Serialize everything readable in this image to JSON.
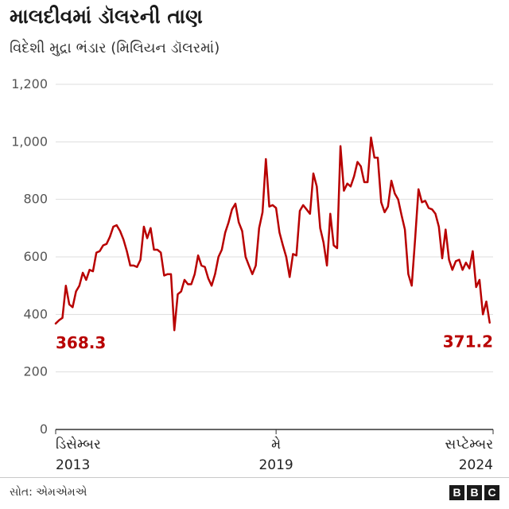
{
  "header": {
    "title": "માલદીવમાં ડૉલરની તાણ",
    "subtitle": "વિદેશી મુદ્રા ભંડાર (મિલિયન ડૉલરમાં)"
  },
  "footer": {
    "source": "સોત: એમએમએ",
    "logo_letters": [
      "B",
      "B",
      "C"
    ]
  },
  "colors": {
    "line": "#b80000",
    "grid": "#dddddd",
    "axis": "#333333"
  },
  "chart_data": {
    "type": "line",
    "title": "માલદીવમાં ડૉલરની તાણ",
    "ylabel": "વિદેશી મુદ્રા ભંડાર (મિલિયન ડૉલરમાં)",
    "xlabel": "",
    "ylim": [
      0,
      1200
    ],
    "yticks": [
      0,
      200,
      400,
      600,
      800,
      1000,
      1200
    ],
    "ytick_labels": [
      "0",
      "200",
      "400",
      "600",
      "800",
      "1,000",
      "1,200"
    ],
    "x_range": [
      0,
      129
    ],
    "x_ticks": [
      {
        "x": 0,
        "line1": "ડિસેમ્બર",
        "line2": "2013"
      },
      {
        "x": 65,
        "line1": "મે",
        "line2": "2019"
      },
      {
        "x": 129,
        "line1": "સપ્ટેમ્બર",
        "line2": "2024"
      }
    ],
    "annotations": [
      {
        "x": 0,
        "y": 368.3,
        "label": "368.3"
      },
      {
        "x": 129,
        "y": 371.2,
        "label": "371.2"
      }
    ],
    "series": [
      {
        "name": "વિદેશી મુદ્રા ભંડાર",
        "values": [
          368.3,
          380,
          388,
          500,
          435,
          425,
          480,
          500,
          545,
          520,
          555,
          550,
          615,
          620,
          640,
          645,
          670,
          705,
          710,
          690,
          660,
          620,
          570,
          570,
          565,
          590,
          705,
          665,
          700,
          625,
          625,
          615,
          535,
          540,
          540,
          345,
          470,
          480,
          520,
          505,
          505,
          540,
          605,
          570,
          565,
          525,
          500,
          540,
          600,
          625,
          685,
          720,
          765,
          785,
          720,
          690,
          600,
          570,
          540,
          570,
          700,
          755,
          940,
          775,
          780,
          770,
          685,
          640,
          600,
          530,
          610,
          605,
          760,
          780,
          765,
          750,
          890,
          845,
          700,
          650,
          570,
          750,
          640,
          630,
          985,
          830,
          855,
          845,
          880,
          930,
          915,
          860,
          860,
          1015,
          945,
          945,
          790,
          755,
          775,
          865,
          820,
          800,
          745,
          695,
          540,
          500,
          660,
          835,
          790,
          795,
          770,
          765,
          750,
          705,
          595,
          695,
          590,
          555,
          585,
          590,
          555,
          580,
          560,
          620,
          495,
          520,
          400,
          445,
          371.2
        ]
      }
    ]
  }
}
